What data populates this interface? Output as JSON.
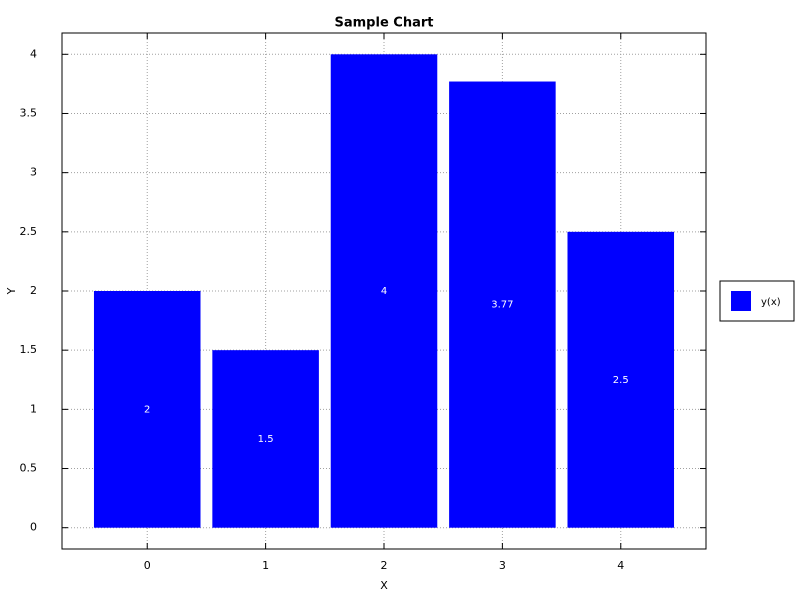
{
  "chart_data": {
    "type": "bar",
    "title": "Sample Chart",
    "x_label": "X",
    "y_label": "Y",
    "x": [
      0,
      1,
      2,
      3,
      4
    ],
    "series": [
      {
        "name": "y(x)",
        "color": "#0000ff",
        "values": [
          2,
          1.5,
          4,
          3.77,
          2.5
        ]
      }
    ],
    "xlim": [
      -0.72,
      4.72
    ],
    "xticks": [
      0,
      1,
      2,
      3,
      4
    ],
    "ylim": [
      -0.18,
      4.18
    ],
    "yticks": [
      0,
      0.5,
      1,
      1.5,
      2,
      2.5,
      3,
      3.5,
      4
    ],
    "grid": true,
    "legend": "right"
  }
}
